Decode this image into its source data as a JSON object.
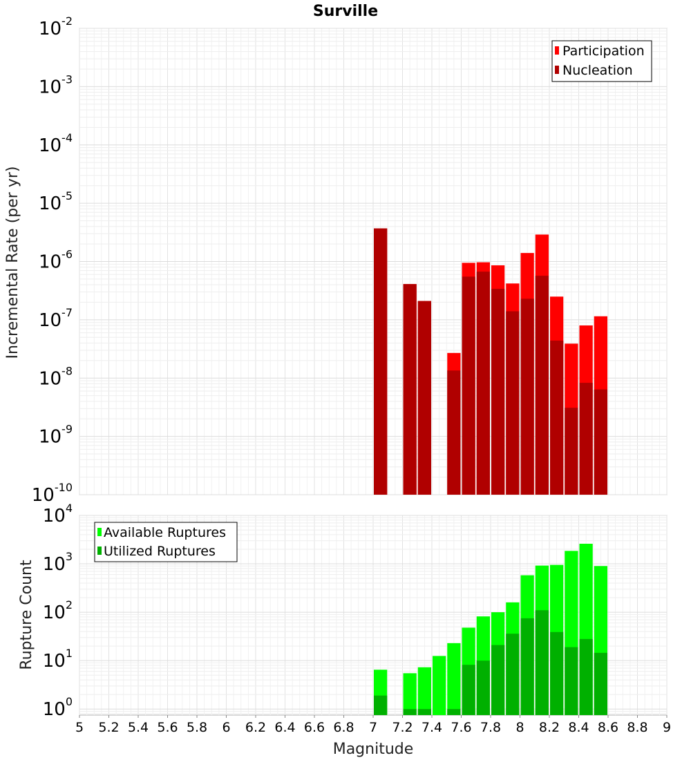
{
  "chart_data": [
    {
      "type": "bar",
      "title": "Surville",
      "xlabel": "",
      "ylabel": "Incremental Rate (per yr)",
      "yscale": "log",
      "ylim": [
        1e-10,
        0.01
      ],
      "xlim": [
        5,
        9
      ],
      "grid": true,
      "legend_position": "top-right",
      "x": [
        7.05,
        7.25,
        7.35,
        7.55,
        7.65,
        7.75,
        7.85,
        7.95,
        8.05,
        8.15,
        8.25,
        8.35,
        8.45,
        8.55
      ],
      "series": [
        {
          "name": "Participation",
          "color": "#ff0000",
          "values": [
            3.7e-06,
            4.1e-07,
            2.1e-07,
            2.7e-08,
            9.5e-07,
            9.7e-07,
            8.6e-07,
            4.2e-07,
            1.4e-06,
            2.9e-06,
            2.5e-07,
            3.9e-08,
            8e-08,
            1.15e-07
          ]
        },
        {
          "name": "Nucleation",
          "color": "#b00000",
          "values": [
            3.7e-06,
            4.1e-07,
            2.1e-07,
            1.35e-08,
            5.5e-07,
            6.7e-07,
            3.4e-07,
            1.4e-07,
            2.3e-07,
            5.7e-07,
            4.4e-08,
            3.1e-09,
            8.3e-09,
            6.4e-09
          ]
        }
      ]
    },
    {
      "type": "bar",
      "title": "",
      "xlabel": "Magnitude",
      "ylabel": "Rupture Count",
      "yscale": "log",
      "ylim": [
        0.75,
        10000
      ],
      "xlim": [
        5,
        9
      ],
      "grid": true,
      "legend_position": "top-left",
      "x": [
        7.05,
        7.25,
        7.35,
        7.45,
        7.55,
        7.65,
        7.75,
        7.85,
        7.95,
        8.05,
        8.15,
        8.25,
        8.35,
        8.45,
        8.55
      ],
      "series": [
        {
          "name": "Available Ruptures",
          "color": "#00ff00",
          "values": [
            6.5,
            5.5,
            7.3,
            12.5,
            23,
            48,
            82,
            100,
            160,
            580,
            920,
            950,
            1850,
            2600,
            900
          ]
        },
        {
          "name": "Utilized Ruptures",
          "color": "#00b000",
          "values": [
            1.9,
            1,
            1,
            0,
            1,
            8.2,
            10,
            21,
            36,
            75,
            110,
            39,
            19,
            28,
            14.5
          ]
        }
      ]
    }
  ],
  "x_ticks": [
    "5",
    "5.2",
    "5.4",
    "5.6",
    "5.8",
    "6",
    "6.2",
    "6.4",
    "6.6",
    "6.8",
    "7",
    "7.2",
    "7.4",
    "7.6",
    "7.8",
    "8",
    "8.2",
    "8.4",
    "8.6",
    "8.8",
    "9"
  ],
  "top_y_exponents": [
    "-2",
    "-3",
    "-4",
    "-5",
    "-6",
    "-7",
    "-8",
    "-9",
    "-10"
  ],
  "bottom_y_exponents": [
    "4",
    "3",
    "2",
    "1",
    "0"
  ]
}
